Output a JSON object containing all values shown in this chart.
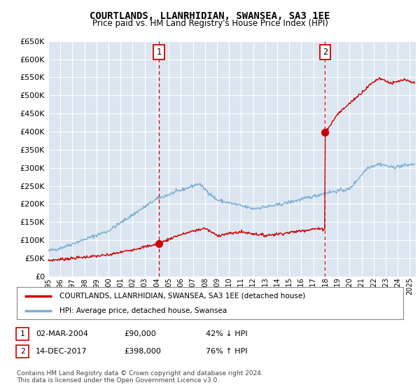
{
  "title": "COURTLANDS, LLANRHIDIAN, SWANSEA, SA3 1EE",
  "subtitle": "Price paid vs. HM Land Registry's House Price Index (HPI)",
  "ylim": [
    0,
    650000
  ],
  "yticks": [
    0,
    50000,
    100000,
    150000,
    200000,
    250000,
    300000,
    350000,
    400000,
    450000,
    500000,
    550000,
    600000,
    650000
  ],
  "xlim_start": 1995.0,
  "xlim_end": 2025.5,
  "background_color": "#ffffff",
  "plot_bg_color": "#dce6f1",
  "grid_color": "#ffffff",
  "red_line_color": "#cc0000",
  "blue_line_color": "#7bafd4",
  "transaction1_x": 2004.17,
  "transaction1_y": 90000,
  "transaction2_x": 2017.96,
  "transaction2_y": 398000,
  "legend_label_red": "COURTLANDS, LLANRHIDIAN, SWANSEA, SA3 1EE (detached house)",
  "legend_label_blue": "HPI: Average price, detached house, Swansea",
  "table_row1": [
    "1",
    "02-MAR-2004",
    "£90,000",
    "42% ↓ HPI"
  ],
  "table_row2": [
    "2",
    "14-DEC-2017",
    "£398,000",
    "76% ↑ HPI"
  ],
  "footnote1": "Contains HM Land Registry data © Crown copyright and database right 2024.",
  "footnote2": "This data is licensed under the Open Government Licence v3.0."
}
